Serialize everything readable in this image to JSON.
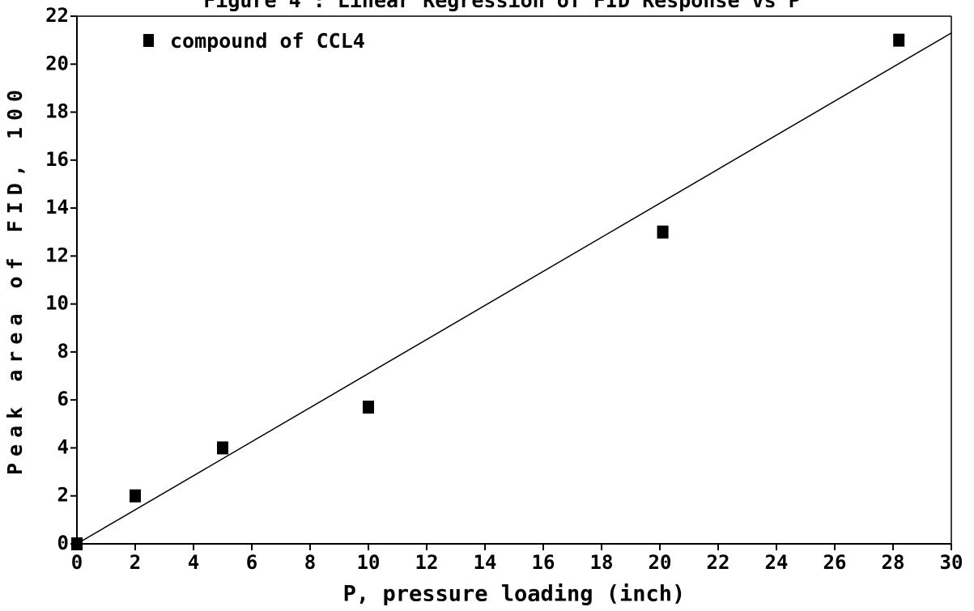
{
  "chart_data": {
    "type": "scatter",
    "title": "Figure 4 : Linear Regression of FID Response vs P",
    "x_label": "P, pressure loading (inch)",
    "y_label": "Peak area of FID, 100",
    "series": [
      {
        "name": "compound of CCL4",
        "color": "#000000",
        "x": [
          0,
          2,
          5,
          10,
          20.1,
          28.2
        ],
        "values": [
          0,
          2,
          4,
          5.7,
          13,
          21
        ]
      }
    ],
    "regression_line": {
      "x": [
        0,
        30
      ],
      "values": [
        0,
        21.3
      ]
    },
    "xlim": [
      0,
      30
    ],
    "xticks": [
      0,
      2,
      4,
      6,
      8,
      10,
      12,
      14,
      16,
      18,
      20,
      22,
      24,
      26,
      28,
      30
    ],
    "ylim": [
      0,
      22
    ],
    "yticks": [
      0,
      2,
      4,
      6,
      8,
      10,
      12,
      14,
      16,
      18,
      20,
      22
    ],
    "legend": "upper left"
  }
}
